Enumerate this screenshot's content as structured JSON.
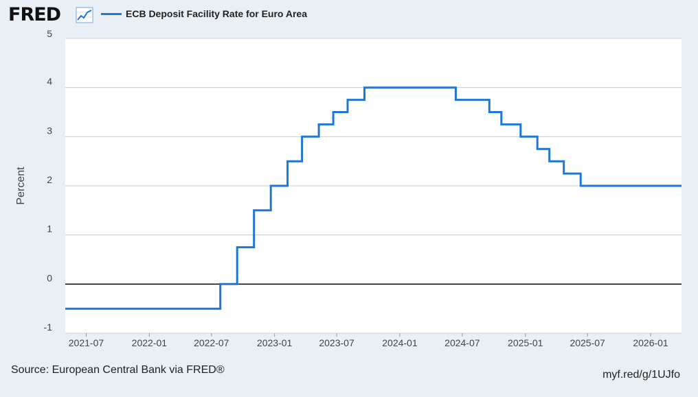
{
  "header": {
    "logo_text": "FRED",
    "logo_icon": "trend-chart-icon"
  },
  "footer": {
    "source": "Source: European Central Bank via FRED®",
    "shortlink": "myf.red/g/1UJfo"
  },
  "colors": {
    "series": "#1f77d4",
    "background": "#e8eff5",
    "plot_background": "#ffffff",
    "grid": "#cccccc",
    "zero_line": "#000000"
  },
  "chart_data": {
    "type": "line",
    "title": "",
    "xlabel": "",
    "ylabel": "Percent",
    "ylim": [
      -1,
      5
    ],
    "y_ticks": [
      "5",
      "4",
      "3",
      "2",
      "1",
      "0",
      "-1"
    ],
    "x_ticks": [
      "2021-07",
      "2022-01",
      "2022-07",
      "2023-01",
      "2023-07",
      "2024-01",
      "2024-07",
      "2025-01",
      "2025-07",
      "2026-01"
    ],
    "x_range": [
      "2021-05-01",
      "2026-04-01"
    ],
    "step": true,
    "grid": true,
    "legend": "top-left",
    "series": [
      {
        "name": "ECB Deposit Facility Rate for Euro Area",
        "points": [
          [
            "2021-05-01",
            -0.5
          ],
          [
            "2022-07-27",
            0.0
          ],
          [
            "2022-09-14",
            0.75
          ],
          [
            "2022-11-02",
            1.5
          ],
          [
            "2022-12-21",
            2.0
          ],
          [
            "2023-02-08",
            2.5
          ],
          [
            "2023-03-22",
            3.0
          ],
          [
            "2023-05-10",
            3.25
          ],
          [
            "2023-06-21",
            3.5
          ],
          [
            "2023-08-02",
            3.75
          ],
          [
            "2023-09-20",
            4.0
          ],
          [
            "2024-06-12",
            3.75
          ],
          [
            "2024-09-18",
            3.5
          ],
          [
            "2024-10-23",
            3.25
          ],
          [
            "2024-12-18",
            3.0
          ],
          [
            "2025-02-05",
            2.75
          ],
          [
            "2025-03-12",
            2.5
          ],
          [
            "2025-04-23",
            2.25
          ],
          [
            "2025-06-11",
            2.0
          ],
          [
            "2026-04-01",
            2.0
          ]
        ]
      }
    ]
  }
}
